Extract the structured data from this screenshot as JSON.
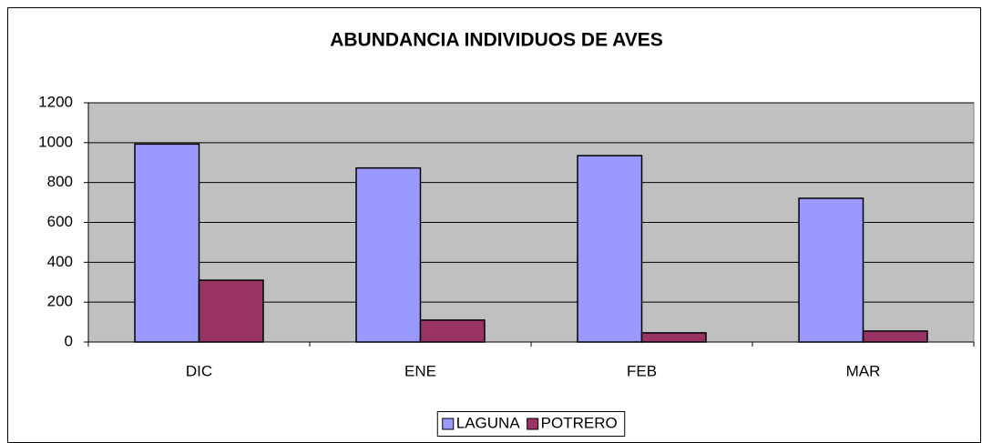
{
  "chart_data": {
    "type": "bar",
    "title": "ABUNDANCIA INDIVIDUOS DE AVES",
    "categories": [
      "DIC",
      "ENE",
      "FEB",
      "MAR"
    ],
    "series": [
      {
        "name": "LAGUNA",
        "color": "#9999ff",
        "values": [
          993,
          873,
          935,
          721
        ]
      },
      {
        "name": "POTRERO",
        "color": "#993366",
        "values": [
          310,
          110,
          46,
          55
        ]
      }
    ],
    "ylim": [
      0,
      1200
    ],
    "yticks": [
      0,
      200,
      400,
      600,
      800,
      1000,
      1200
    ],
    "grid": true,
    "legend": "bottom"
  }
}
